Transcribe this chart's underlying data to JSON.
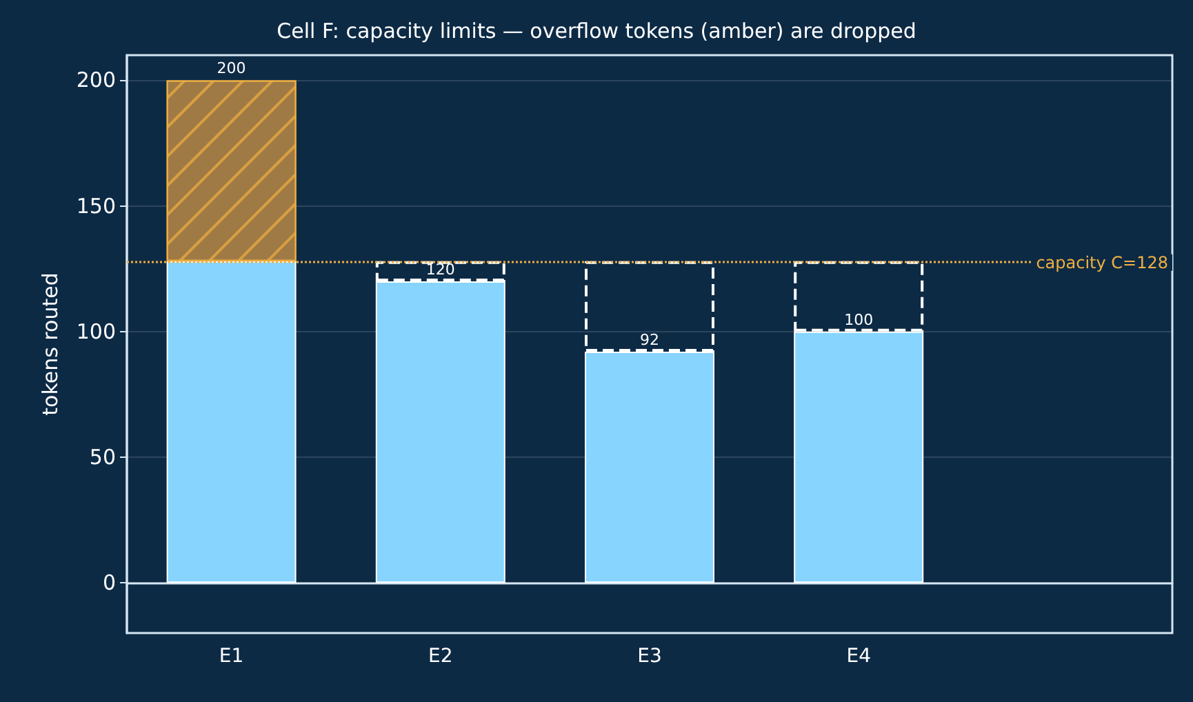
{
  "chart_data": {
    "type": "bar",
    "title": "Cell F: capacity limits — overflow tokens (amber) are dropped",
    "ylabel": "tokens routed",
    "categories": [
      "E1",
      "E2",
      "E3",
      "E4"
    ],
    "series": [
      {
        "color": "#87d4ff",
        "values": [
          128,
          120,
          92,
          100
        ]
      },
      {
        "color": "#ffffff",
        "line_style": "dashed",
        "values": [
          null,
          8,
          36,
          28
        ]
      },
      {
        "color": "#a07a45",
        "values": [
          72,
          null,
          null,
          null
        ]
      }
    ],
    "stacked": true,
    "annotations": [
      {
        "text": "200",
        "x": "E1",
        "y": 200
      },
      {
        "text": "120",
        "x": "E2",
        "y": 120
      },
      {
        "text": "92",
        "x": "E3",
        "y": 92
      },
      {
        "text": "100",
        "x": "E4",
        "y": 100
      }
    ],
    "ylim": [
      -20,
      210
    ],
    "yticks": [
      0,
      50,
      100,
      150,
      200
    ],
    "grid": "y",
    "legend": false,
    "ref_lines": [
      {
        "axis": "y",
        "value": 128,
        "label": "capacity C=128",
        "color": "#f0b040",
        "line_style": "dotted"
      }
    ]
  }
}
